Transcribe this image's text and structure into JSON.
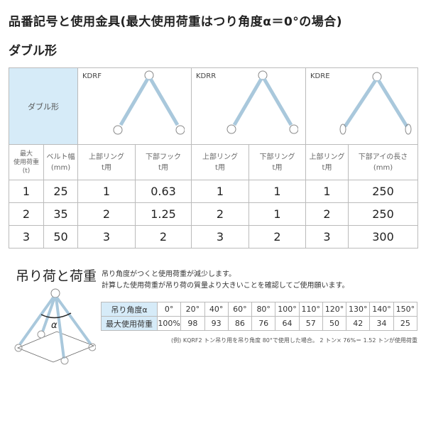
{
  "title": "品番記号と使用金具(最大使用荷重はつり角度α＝0°の場合)",
  "subtitle": "ダブル形",
  "main_table": {
    "type_label": "ダブル形",
    "models": [
      {
        "name": "KDRF",
        "icon": "sling-hook-icon"
      },
      {
        "name": "KDRR",
        "icon": "sling-ring-icon"
      },
      {
        "name": "KDRE",
        "icon": "sling-eye-icon"
      }
    ],
    "headers": [
      [
        "最大",
        "使用荷重",
        "(t)"
      ],
      [
        "ベルト幅",
        "(mm)"
      ],
      [
        "上部リング",
        "t用"
      ],
      [
        "下部フック",
        "t用"
      ],
      [
        "上部リング",
        "t用"
      ],
      [
        "下部リング",
        "t用"
      ],
      [
        "上部リング",
        "t用"
      ],
      [
        "下部アイの長さ",
        "(mm)"
      ]
    ],
    "rows": [
      [
        "1",
        "25",
        "1",
        "0.63",
        "1",
        "1",
        "1",
        "250"
      ],
      [
        "2",
        "35",
        "2",
        "1.25",
        "2",
        "1",
        "2",
        "250"
      ],
      [
        "3",
        "50",
        "3",
        "2",
        "3",
        "2",
        "3",
        "300"
      ]
    ]
  },
  "load_section": {
    "heading": "吊り荷と荷重",
    "note1": "吊り角度がつくと使用荷重が減少します。",
    "note2": "計算した使用荷重が吊り荷の質量より大きいことを確認してご使用願います。",
    "alpha": "α",
    "angle_label": "吊り角度α",
    "load_label": "最大使用荷重",
    "angles": [
      "0°",
      "20°",
      "40°",
      "60°",
      "80°",
      "100°",
      "110°",
      "120°",
      "130°",
      "140°",
      "150°"
    ],
    "loads": [
      "100%",
      "98",
      "93",
      "86",
      "76",
      "64",
      "57",
      "50",
      "42",
      "34",
      "25"
    ],
    "footnote": "(例) KQRF2 トン吊り用を吊り角度 80°で使用した場合。 2 トン× 76%＝ 1.52 トンが使用荷重"
  },
  "colors": {
    "header_blue": "#d6ebf8",
    "sling": "#a9c8dc"
  }
}
